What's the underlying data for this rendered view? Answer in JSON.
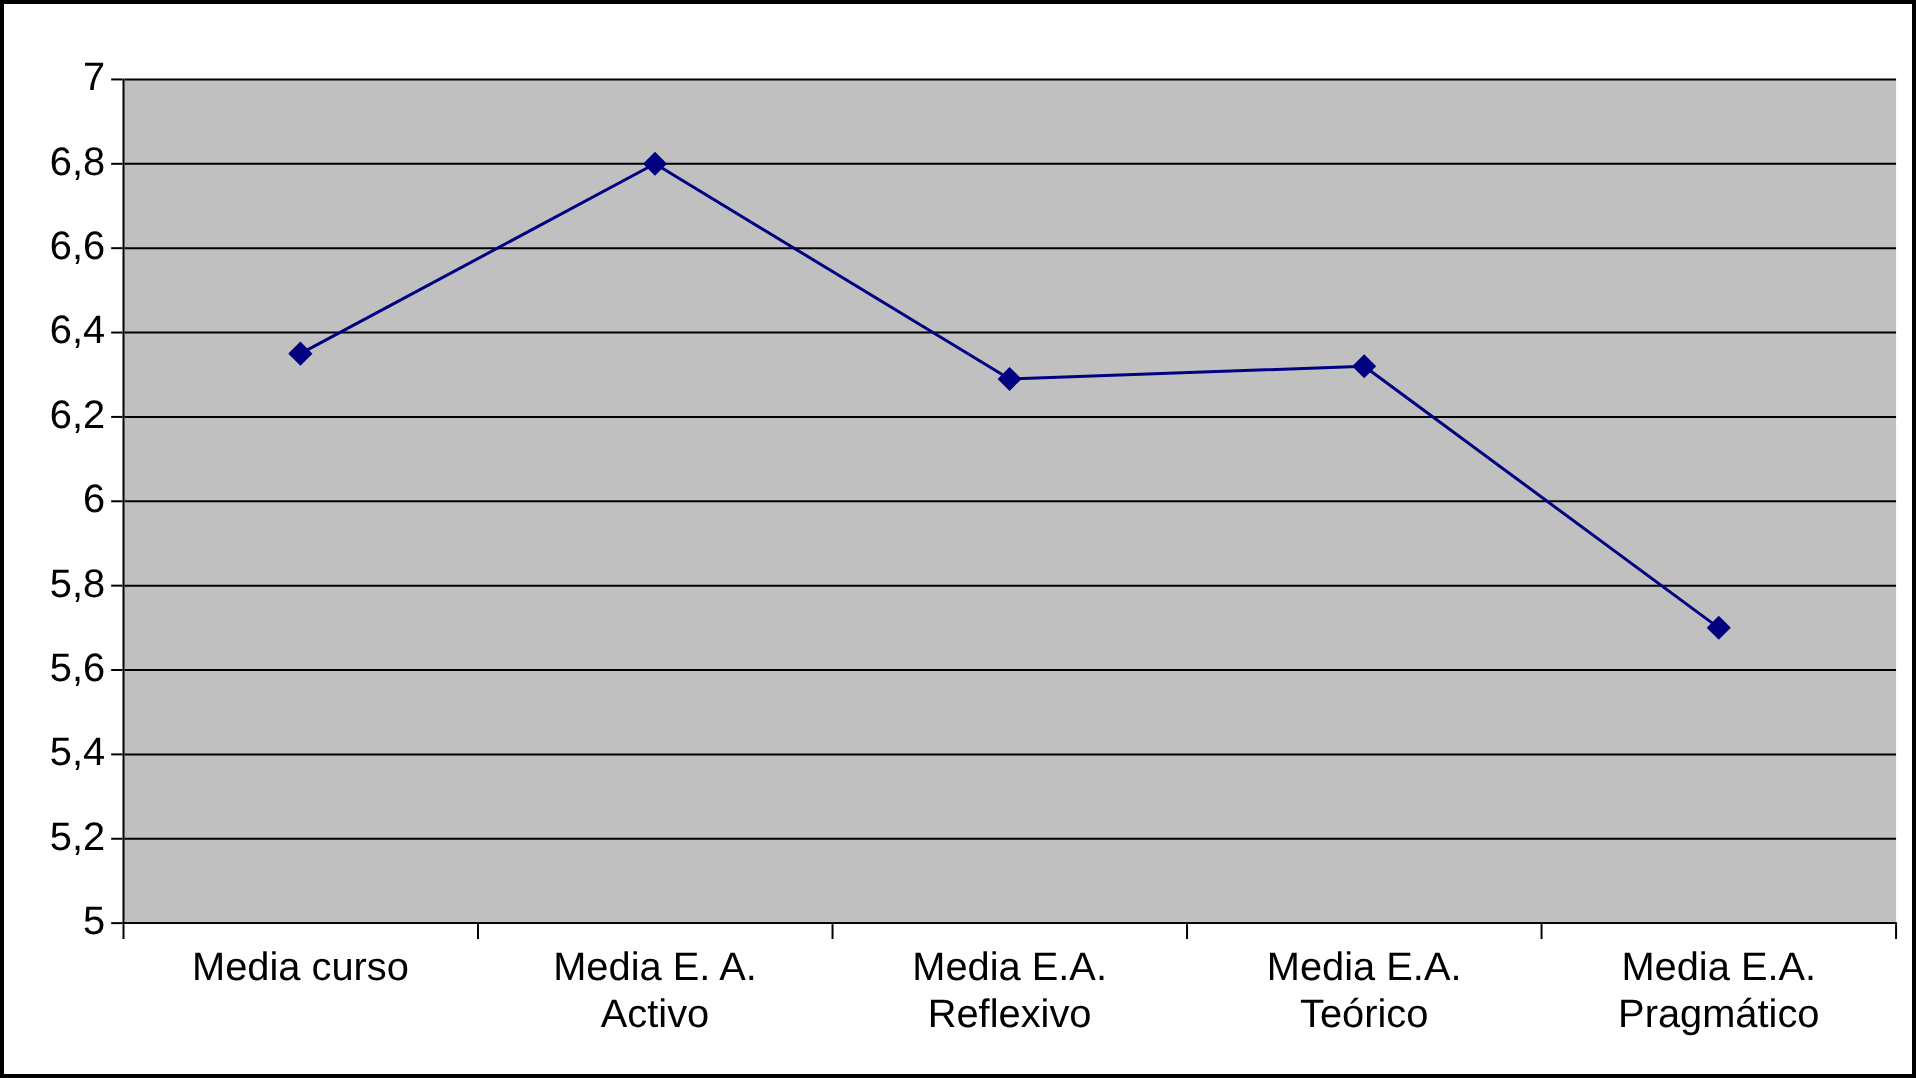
{
  "chart_data": {
    "type": "line",
    "categories": [
      "Media curso",
      "Media E. A.\nActivo",
      "Media E.A.\nReflexivo",
      "Media E.A.\nTeórico",
      "Media E.A.\nPragmático"
    ],
    "series": [
      {
        "color": "#000080",
        "values": [
          6.35,
          6.8,
          6.29,
          6.32,
          5.7
        ]
      }
    ],
    "ylim": [
      5,
      7
    ],
    "yticks": [
      5,
      {
        "value": 5.2,
        "label": "5,2"
      },
      {
        "value": 5.4,
        "label": "5,4"
      },
      {
        "value": 5.6,
        "label": "5,6"
      },
      {
        "value": 5.8,
        "label": "5,8"
      },
      6,
      {
        "value": 6.2,
        "label": "6,2"
      },
      {
        "value": 6.4,
        "label": "6,4"
      },
      {
        "value": 6.6,
        "label": "6,6"
      },
      {
        "value": 6.8,
        "label": "6,8"
      },
      7
    ],
    "grid": "y",
    "legend": false,
    "marker": "diamond",
    "line_style": "solid"
  }
}
